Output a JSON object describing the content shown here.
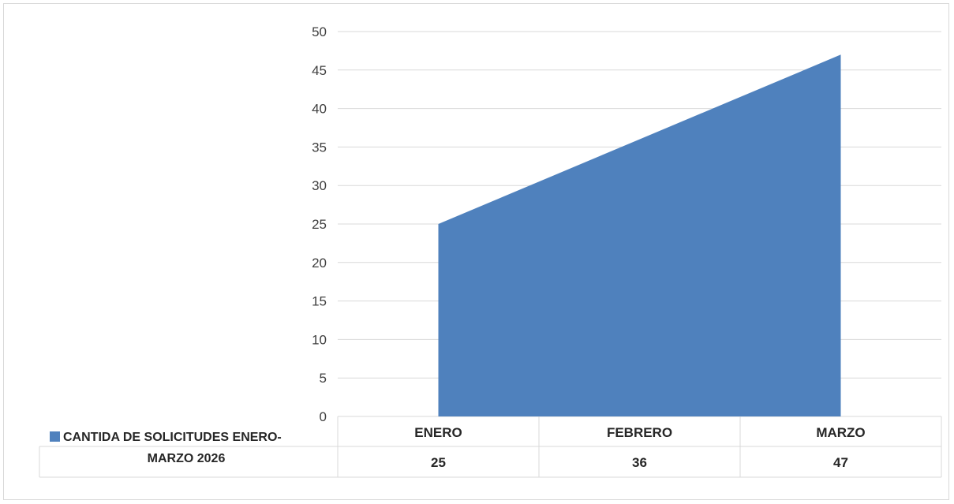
{
  "chart_data": {
    "type": "area",
    "categories": [
      "ENERO",
      "FEBRERO",
      "MARZO"
    ],
    "series": [
      {
        "name": "CANTIDA DE SOLICITUDES ENERO-MARZO 2026",
        "values": [
          25,
          36,
          47
        ],
        "color": "#4f81bd"
      }
    ],
    "ylim": [
      0,
      50
    ],
    "ytick_step": 5,
    "grid": true,
    "data_table": true,
    "legend_placement": "data-table",
    "gridline_color": "#d9d9d9",
    "title": "",
    "xlabel": "",
    "ylabel": ""
  },
  "legend": {
    "line1": "CANTIDA DE SOLICITUDES ENERO-",
    "line2": "MARZO 2026"
  }
}
